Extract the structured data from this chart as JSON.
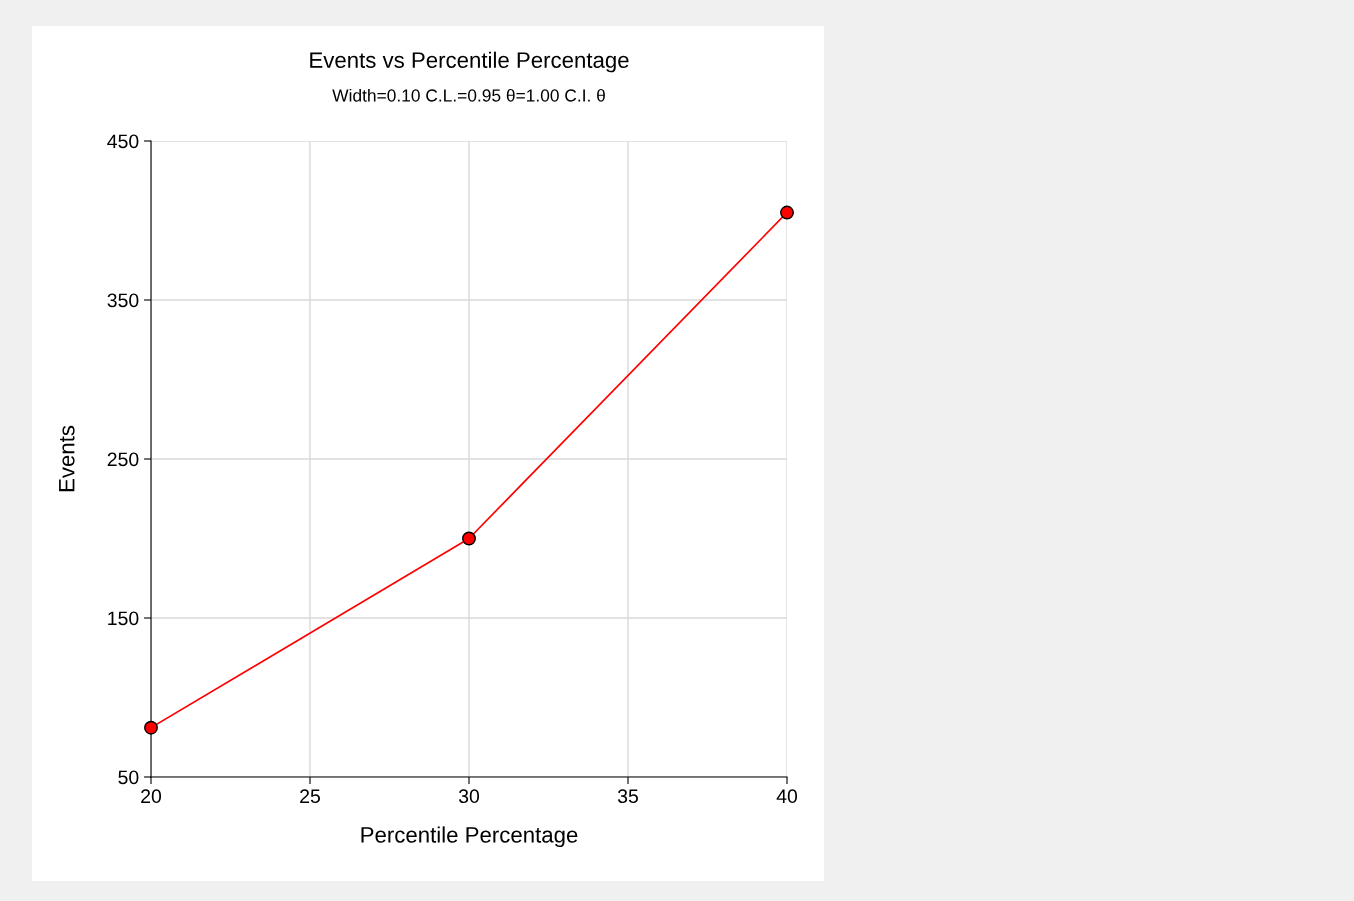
{
  "chart_data": {
    "type": "line",
    "title": "Events vs Percentile Percentage",
    "subtitle": "Width=0.10 C.L.=0.95 θ=1.00 C.I. θ",
    "xlabel": "Percentile Percentage",
    "ylabel": "Events",
    "x": [
      20,
      30,
      40
    ],
    "series": [
      {
        "color": "#ff0000",
        "values": [
          81,
          200,
          405
        ]
      }
    ],
    "xlim": [
      20,
      40
    ],
    "xticks": [
      20,
      25,
      30,
      35,
      40
    ],
    "ylim": [
      50,
      450
    ],
    "yticks": [
      50,
      150,
      250,
      350,
      450
    ],
    "grid": true,
    "marker": "circle",
    "line_style": "solid"
  }
}
